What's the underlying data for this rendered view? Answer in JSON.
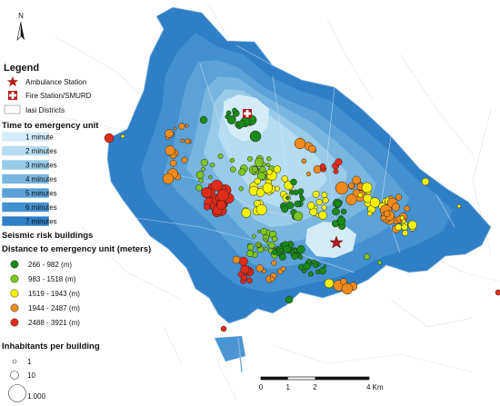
{
  "north_label": "N",
  "legend": {
    "title": "Legend",
    "ambulance_label": "Ambulance Station",
    "fire_label": "Fire Station/SMURD",
    "districts_label": "Iasi Districts",
    "time_title": "Time to emergency unit",
    "time_classes": [
      {
        "label": "1 minute",
        "color": "#d4ecf8"
      },
      {
        "label": "2 minutes",
        "color": "#b6dcf1"
      },
      {
        "label": "3 minutes",
        "color": "#98cbe9"
      },
      {
        "label": "4 minutes",
        "color": "#78b6e0"
      },
      {
        "label": "5 minutes",
        "color": "#5aa2d8"
      },
      {
        "label": "6 minutes",
        "color": "#4290d0"
      },
      {
        "label": "7 minutes",
        "color": "#2f7fc6"
      }
    ],
    "seismic_title": "Seismic risk buildings",
    "distance_title": "Distance to emergency unit (meters)",
    "distance_classes": [
      {
        "label": "266 - 982 (m)",
        "color": "#1a8a1a"
      },
      {
        "label": "983 - 1518 (m)",
        "color": "#7cc61e"
      },
      {
        "label": "1519 - 1943 (m)",
        "color": "#f4f200"
      },
      {
        "label": "1944 - 2487 (m)",
        "color": "#f08a1c"
      },
      {
        "label": "2488 - 3921 (m)",
        "color": "#e02a1a"
      }
    ],
    "inhabitants_title": "Inhabitants per building",
    "inhabitant_classes": [
      "1",
      "10",
      "1.000"
    ]
  },
  "scale_bar": {
    "labels": [
      "0",
      "1",
      "2",
      "4 Km"
    ]
  }
}
